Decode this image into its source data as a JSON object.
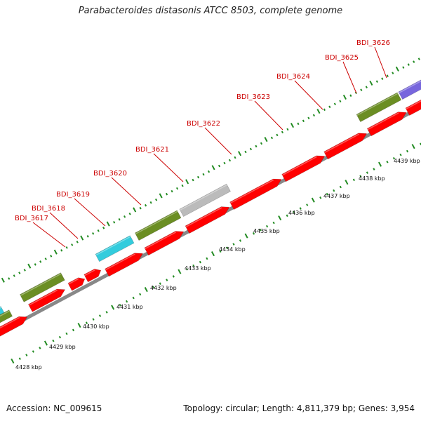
{
  "title": "Parabacteroides distasonis ATCC 8503, complete genome",
  "footer": {
    "accession": "Accession: NC_009615",
    "topology": "Topology: circular; Length: 4,811,379 bp; Genes: 3,954"
  },
  "colors": {
    "cds": "#ff0000",
    "trna": "#33ccdd",
    "rrna": "#6b8e23",
    "other": "#7766dd",
    "pseudo": "#bbbbbb",
    "backbone": "#888888",
    "label": "#cc0000",
    "ticks": "#228b22"
  },
  "gene_labels": [
    {
      "name": "BDI_3617"
    },
    {
      "name": "BDI_3618"
    },
    {
      "name": "BDI_3619"
    },
    {
      "name": "BDI_3620"
    },
    {
      "name": "BDI_3621"
    },
    {
      "name": "BDI_3622"
    },
    {
      "name": "BDI_3623"
    },
    {
      "name": "BDI_3624"
    },
    {
      "name": "BDI_3625"
    },
    {
      "name": "BDI_3626"
    }
  ],
  "kbp_labels": [
    {
      "text": "4428 kbp"
    },
    {
      "text": "4429 kbp"
    },
    {
      "text": "4430 kbp"
    },
    {
      "text": "4431 kbp"
    },
    {
      "text": "4432 kbp"
    },
    {
      "text": "4433 kbp"
    },
    {
      "text": "4434 kbp"
    },
    {
      "text": "4435 kbp"
    },
    {
      "text": "4436 kbp"
    },
    {
      "text": "4437 kbp"
    },
    {
      "text": "4438 kbp"
    },
    {
      "text": "4439 kbp"
    }
  ]
}
